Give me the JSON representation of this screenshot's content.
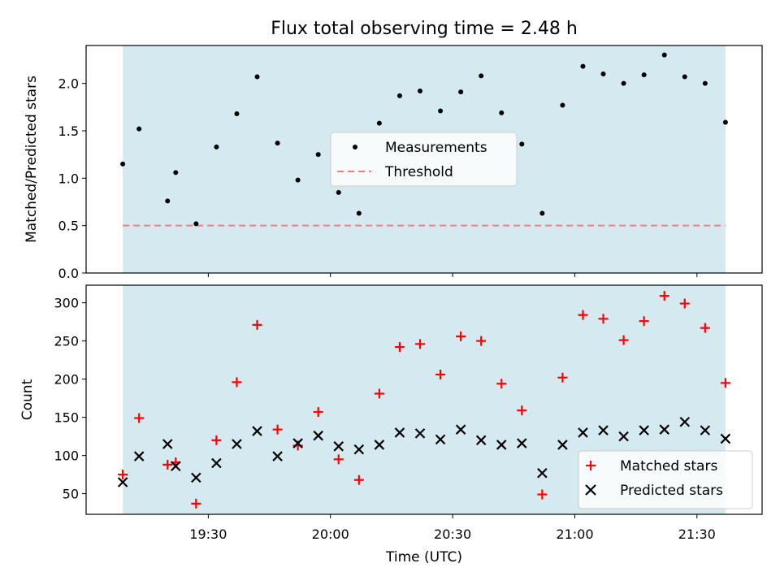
{
  "title": "Flux total observing time = 2.48 h",
  "colors": {
    "observing_span": "#d4eaf0",
    "measurement": "#000000",
    "threshold": "#f08080",
    "matched": "#ff0000",
    "predicted": "#000000"
  },
  "chart_data": [
    {
      "type": "scatter",
      "ylabel": "Matched/Predicted stars",
      "ylim": [
        0,
        2.4
      ],
      "yticks": [
        "0.0",
        "0.5",
        "1.0",
        "1.5",
        "2.0"
      ],
      "xlim": [
        "19:00",
        "21:46"
      ],
      "shaded_span": [
        "19:09",
        "21:37"
      ],
      "legend_position": "center",
      "threshold": {
        "name": "Threshold",
        "value": 0.5
      },
      "series": [
        {
          "name": "Measurements",
          "x": [
            "19:09",
            "19:13",
            "19:20",
            "19:22",
            "19:27",
            "19:32",
            "19:37",
            "19:42",
            "19:47",
            "19:52",
            "19:57",
            "20:02",
            "20:07",
            "20:12",
            "20:17",
            "20:22",
            "20:27",
            "20:32",
            "20:37",
            "20:42",
            "20:47",
            "20:52",
            "20:57",
            "21:02",
            "21:07",
            "21:12",
            "21:17",
            "21:22",
            "21:27",
            "21:32",
            "21:37"
          ],
          "values": [
            1.15,
            1.52,
            0.76,
            1.06,
            0.52,
            1.33,
            1.68,
            2.07,
            1.37,
            0.98,
            1.25,
            0.85,
            0.63,
            1.58,
            1.87,
            1.92,
            1.71,
            1.91,
            2.08,
            1.69,
            1.36,
            0.63,
            1.77,
            2.18,
            2.1,
            2.0,
            2.09,
            2.3,
            2.07,
            2.0,
            1.59
          ]
        }
      ]
    },
    {
      "type": "scatter",
      "xlabel": "Time (UTC)",
      "ylabel": "Count",
      "ylim": [
        23,
        323
      ],
      "yticks": [
        "50",
        "100",
        "150",
        "200",
        "250",
        "300"
      ],
      "xlim": [
        "19:00",
        "21:46"
      ],
      "xticks": [
        "19:30",
        "20:00",
        "20:30",
        "21:00",
        "21:30"
      ],
      "shaded_span": [
        "19:09",
        "21:37"
      ],
      "legend_position": "lower right",
      "series": [
        {
          "name": "Matched stars",
          "x": [
            "19:09",
            "19:13",
            "19:20",
            "19:22",
            "19:27",
            "19:32",
            "19:37",
            "19:42",
            "19:47",
            "19:52",
            "19:57",
            "20:02",
            "20:07",
            "20:12",
            "20:17",
            "20:22",
            "20:27",
            "20:32",
            "20:37",
            "20:42",
            "20:47",
            "20:52",
            "20:57",
            "21:02",
            "21:07",
            "21:12",
            "21:17",
            "21:22",
            "21:27",
            "21:32",
            "21:37"
          ],
          "values": [
            75,
            149,
            88,
            91,
            37,
            120,
            196,
            271,
            134,
            113,
            157,
            95,
            68,
            181,
            242,
            246,
            206,
            256,
            250,
            194,
            159,
            49,
            202,
            284,
            279,
            251,
            276,
            309,
            299,
            267,
            195
          ]
        },
        {
          "name": "Predicted stars",
          "x": [
            "19:09",
            "19:13",
            "19:20",
            "19:22",
            "19:27",
            "19:32",
            "19:37",
            "19:42",
            "19:47",
            "19:52",
            "19:57",
            "20:02",
            "20:07",
            "20:12",
            "20:17",
            "20:22",
            "20:27",
            "20:32",
            "20:37",
            "20:42",
            "20:47",
            "20:52",
            "20:57",
            "21:02",
            "21:07",
            "21:12",
            "21:17",
            "21:22",
            "21:27",
            "21:32",
            "21:37"
          ],
          "values": [
            65,
            99,
            115,
            86,
            71,
            90,
            115,
            132,
            99,
            116,
            126,
            112,
            108,
            114,
            130,
            129,
            121,
            134,
            120,
            114,
            116,
            77,
            114,
            130,
            133,
            125,
            133,
            134,
            144,
            133,
            122
          ]
        }
      ]
    }
  ]
}
